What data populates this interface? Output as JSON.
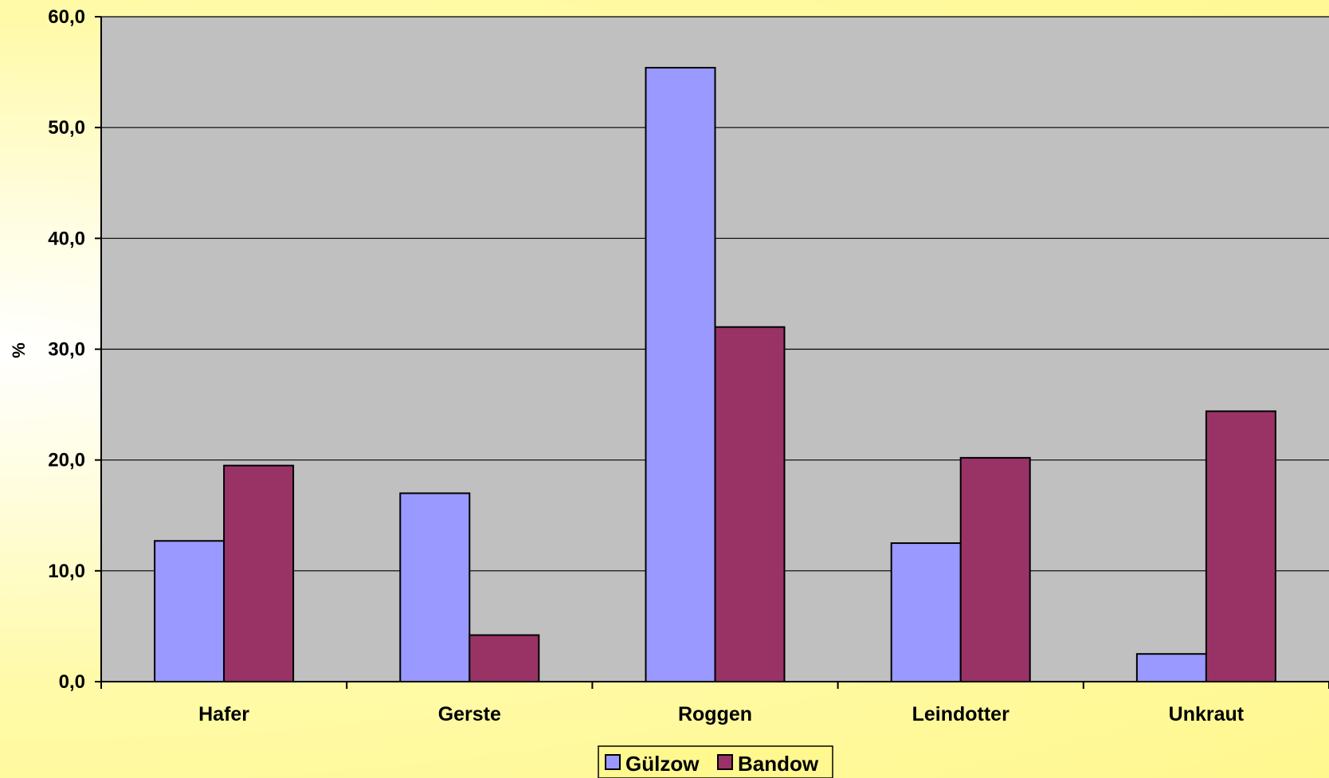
{
  "chart_data": {
    "type": "bar",
    "categories": [
      "Hafer",
      "Gerste",
      "Roggen",
      "Leindotter",
      "Unkraut"
    ],
    "series": [
      {
        "name": "Gülzow",
        "values": [
          12.7,
          17.0,
          55.4,
          12.5,
          2.5
        ],
        "color": "#9999ff"
      },
      {
        "name": "Bandow",
        "values": [
          19.5,
          4.2,
          32.0,
          20.2,
          24.4
        ],
        "color": "#993366"
      }
    ],
    "ylabel": "%",
    "ylim": [
      0,
      60
    ],
    "yticks": [
      0,
      10,
      20,
      30,
      40,
      50,
      60
    ],
    "ytick_labels": [
      "0,0",
      "10,0",
      "20,0",
      "30,0",
      "40,0",
      "50,0",
      "60,0"
    ],
    "grid": true,
    "legend": "bottom",
    "plot_background": "#c0c0c0",
    "page_background": "#fff88f"
  }
}
